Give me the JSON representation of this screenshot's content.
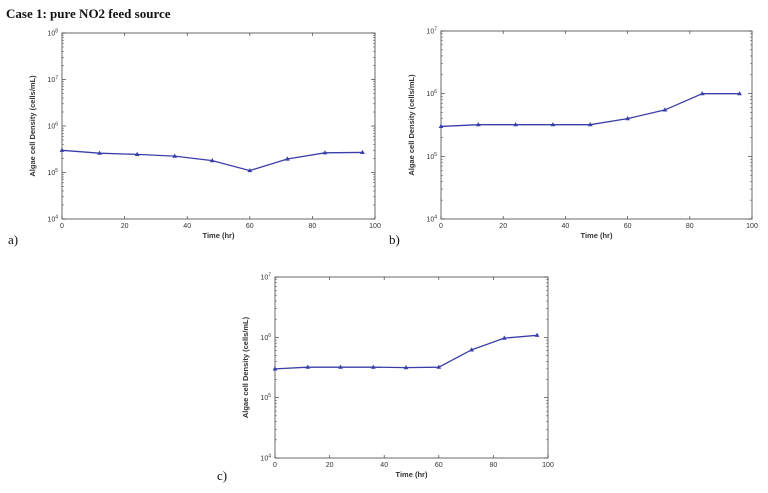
{
  "heading": "Case 1: pure NO2 feed source",
  "colors": {
    "series": "#3a3fa8",
    "axis": "#444444"
  },
  "chart_data": [
    {
      "panel": "a)",
      "type": "line",
      "xlabel": "Time (hr)",
      "ylabel": "Algae cell Density (cells/mL)",
      "xlim": [
        0,
        100
      ],
      "ylim": [
        10000,
        100000000
      ],
      "yscale": "log",
      "xticks": [
        "0",
        "20",
        "40",
        "60",
        "80",
        "100"
      ],
      "yticks": [
        {
          "base": "10",
          "exp": "4"
        },
        {
          "base": "10",
          "exp": "5"
        },
        {
          "base": "10",
          "exp": "6"
        },
        {
          "base": "10",
          "exp": "7"
        },
        {
          "base": "10",
          "exp": "8"
        }
      ],
      "x": [
        0,
        12,
        24,
        36,
        48,
        60,
        72,
        84,
        96
      ],
      "y": [
        300000,
        260000,
        245000,
        225000,
        180000,
        110000,
        195000,
        265000,
        270000
      ]
    },
    {
      "panel": "b)",
      "type": "line",
      "xlabel": "Time (hr)",
      "ylabel": "Algae cell Density (cells/mL)",
      "xlim": [
        0,
        100
      ],
      "ylim": [
        10000,
        10000000
      ],
      "yscale": "log",
      "xticks": [
        "0",
        "20",
        "40",
        "60",
        "80",
        "100"
      ],
      "yticks": [
        {
          "base": "10",
          "exp": "4"
        },
        {
          "base": "10",
          "exp": "5"
        },
        {
          "base": "10",
          "exp": "6"
        },
        {
          "base": "10",
          "exp": "7"
        }
      ],
      "x": [
        0,
        12,
        24,
        36,
        48,
        60,
        72,
        84,
        96
      ],
      "y": [
        300000,
        320000,
        320000,
        320000,
        320000,
        400000,
        550000,
        1000000,
        1000000
      ]
    },
    {
      "panel": "c)",
      "type": "line",
      "xlabel": "Time (hr)",
      "ylabel": "Algae cell Density (cells/mL)",
      "xlim": [
        0,
        100
      ],
      "ylim": [
        10000,
        10000000
      ],
      "yscale": "log",
      "xticks": [
        "0",
        "20",
        "40",
        "60",
        "80",
        "100"
      ],
      "yticks": [
        {
          "base": "10",
          "exp": "4"
        },
        {
          "base": "10",
          "exp": "5"
        },
        {
          "base": "10",
          "exp": "6"
        },
        {
          "base": "10",
          "exp": "7"
        }
      ],
      "x": [
        0,
        12,
        24,
        36,
        48,
        60,
        72,
        84,
        96
      ],
      "y": [
        300000,
        320000,
        320000,
        320000,
        315000,
        320000,
        620000,
        970000,
        1080000
      ]
    }
  ]
}
